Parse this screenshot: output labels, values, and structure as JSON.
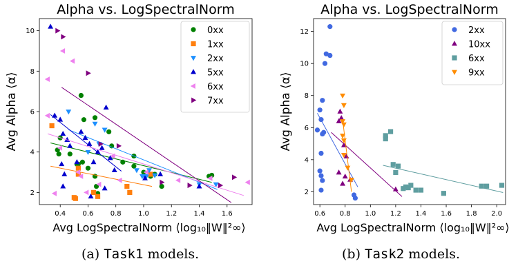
{
  "captions": [
    {
      "prefix": "(a) ",
      "code": "Task1",
      "suffix": " models."
    },
    {
      "prefix": "(b) ",
      "code": "Task2",
      "suffix": " models."
    }
  ],
  "chart_data": [
    {
      "type": "scatter",
      "title": "Alpha vs. LogSpectralNorm",
      "xlabel": "Avg LogSpectralNorm ⟨log₁₀‖W‖²∞⟩",
      "ylabel": "Avg Alpha ⟨α⟩",
      "xlim": [
        0.25,
        1.78
      ],
      "ylim": [
        1.4,
        10.6
      ],
      "xticks": [
        0.4,
        0.6,
        0.8,
        1.0,
        1.2,
        1.4,
        1.6
      ],
      "yticks": [
        2,
        4,
        6,
        8,
        10
      ],
      "grid": false,
      "legend_position": "top-right",
      "series": [
        {
          "name": "0xx",
          "color": "#008000",
          "marker": "circle",
          "points": [
            [
              0.55,
              6.8
            ],
            [
              0.57,
              5.6
            ],
            [
              0.65,
              5.7
            ],
            [
              0.75,
              5.0
            ],
            [
              0.47,
              3.9
            ],
            [
              0.38,
              4.1
            ],
            [
              0.4,
              4.7
            ],
            [
              0.39,
              3.9
            ],
            [
              0.52,
              3.4
            ],
            [
              0.53,
              3.4
            ],
            [
              0.56,
              3.5
            ],
            [
              0.6,
              3.2
            ],
            [
              0.65,
              2.8
            ],
            [
              0.66,
              2.3
            ],
            [
              0.67,
              1.95
            ],
            [
              0.77,
              4.3
            ],
            [
              0.85,
              3.5
            ],
            [
              0.93,
              3.8
            ],
            [
              0.93,
              3.3
            ],
            [
              1.0,
              3.0
            ],
            [
              1.05,
              2.8
            ],
            [
              1.08,
              2.9
            ],
            [
              1.13,
              2.3
            ],
            [
              1.47,
              2.8
            ],
            [
              1.49,
              2.85
            ]
          ],
          "fit": [
            [
              0.33,
              4.45
            ],
            [
              1.49,
              2.5
            ]
          ]
        },
        {
          "name": "1xx",
          "color": "#ff7f0e",
          "marker": "square",
          "points": [
            [
              0.34,
              5.3
            ],
            [
              0.53,
              3.2
            ],
            [
              0.53,
              2.9
            ],
            [
              0.51,
              1.7
            ],
            [
              0.5,
              1.75
            ],
            [
              0.64,
              2.0
            ],
            [
              0.67,
              1.8
            ],
            [
              0.88,
              2.3
            ],
            [
              0.9,
              2.0
            ],
            [
              1.05,
              2.9
            ]
          ],
          "fit": [
            [
              0.33,
              3.3
            ],
            [
              1.06,
              2.3
            ]
          ]
        },
        {
          "name": "2xx",
          "color": "#1e90ff",
          "marker": "triangle-down",
          "points": [
            [
              0.46,
              6.0
            ],
            [
              0.65,
              5.4
            ],
            [
              0.68,
              4.4
            ],
            [
              0.72,
              5.1
            ],
            [
              0.6,
              4.0
            ],
            [
              0.95,
              3.1
            ],
            [
              0.99,
              2.8
            ],
            [
              1.01,
              2.75
            ],
            [
              1.02,
              2.8
            ],
            [
              1.04,
              3.1
            ],
            [
              1.08,
              2.85
            ],
            [
              1.4,
              2.4
            ],
            [
              1.52,
              2.4
            ]
          ],
          "fit": [
            [
              0.46,
              5.1
            ],
            [
              1.53,
              2.15
            ]
          ]
        },
        {
          "name": "5xx",
          "color": "#0000cd",
          "marker": "triangle-up",
          "points": [
            [
              0.33,
              10.2
            ],
            [
              0.36,
              5.8
            ],
            [
              0.4,
              5.6
            ],
            [
              0.42,
              4.9
            ],
            [
              0.45,
              4.6
            ],
            [
              0.47,
              4.3
            ],
            [
              0.41,
              3.4
            ],
            [
              0.43,
              2.9
            ],
            [
              0.52,
              3.5
            ],
            [
              0.55,
              5.0
            ],
            [
              0.58,
              4.7
            ],
            [
              0.61,
              4.4
            ],
            [
              0.64,
              3.5
            ],
            [
              0.67,
              4.0
            ],
            [
              0.7,
              4.2
            ],
            [
              0.73,
              6.2
            ],
            [
              0.76,
              3.7
            ],
            [
              0.79,
              3.1
            ],
            [
              0.72,
              2.2
            ],
            [
              0.62,
              1.8
            ],
            [
              0.42,
              2.3
            ],
            [
              1.01,
              2.7
            ],
            [
              1.12,
              2.9
            ],
            [
              1.4,
              2.3
            ]
          ],
          "fit": [
            [
              0.33,
              5.85
            ],
            [
              0.84,
              3.05
            ]
          ]
        },
        {
          "name": "6xx",
          "color": "#ee82ee",
          "marker": "triangle-left",
          "points": [
            [
              0.31,
              7.6
            ],
            [
              0.42,
              9.0
            ],
            [
              0.49,
              8.5
            ],
            [
              0.31,
              5.8
            ],
            [
              0.4,
              4.2
            ],
            [
              0.53,
              3.0
            ],
            [
              0.55,
              2.8
            ],
            [
              0.36,
              1.95
            ],
            [
              0.59,
              2.0
            ],
            [
              0.68,
              2.4
            ],
            [
              0.78,
              3.8
            ],
            [
              0.83,
              2.6
            ],
            [
              1.02,
              3.0
            ],
            [
              1.25,
              2.6
            ],
            [
              1.48,
              2.7
            ],
            [
              1.75,
              2.5
            ]
          ],
          "fit": [
            [
              0.31,
              4.9
            ],
            [
              1.72,
              1.85
            ]
          ]
        },
        {
          "name": "7xx",
          "color": "#800080",
          "marker": "triangle-right",
          "points": [
            [
              0.38,
              10.0
            ],
            [
              0.42,
              9.7
            ],
            [
              0.6,
              7.9
            ],
            [
              0.69,
              4.4
            ],
            [
              0.82,
              4.3
            ],
            [
              1.13,
              2.5
            ],
            [
              1.33,
              2.35
            ],
            [
              1.55,
              2.35
            ],
            [
              1.65,
              2.75
            ]
          ],
          "fit": [
            [
              0.41,
              7.2
            ],
            [
              1.63,
              1.5
            ]
          ]
        }
      ]
    },
    {
      "type": "scatter",
      "title": "Alpha vs. LogSpectralNorm",
      "xlabel": "Avg LogSpectralNorm ⟨log₁₀‖W‖²∞⟩",
      "ylabel": "Avg Alpha ⟨α⟩",
      "xlim": [
        0.55,
        2.07
      ],
      "ylim": [
        1.2,
        12.8
      ],
      "xticks": [
        0.6,
        0.8,
        1.0,
        1.2,
        1.4,
        1.6,
        1.8,
        2.0
      ],
      "yticks": [
        2,
        4,
        6,
        8,
        10,
        12
      ],
      "grid": false,
      "legend_position": "top-right",
      "series": [
        {
          "name": "2xx",
          "color": "#4169e1",
          "marker": "circle",
          "points": [
            [
              0.68,
              12.3
            ],
            [
              0.65,
              10.6
            ],
            [
              0.68,
              10.5
            ],
            [
              0.64,
              10.0
            ],
            [
              0.62,
              7.7
            ],
            [
              0.6,
              7.1
            ],
            [
              0.61,
              6.5
            ],
            [
              0.58,
              5.85
            ],
            [
              0.63,
              5.7
            ],
            [
              0.62,
              5.6
            ],
            [
              0.61,
              4.4
            ],
            [
              0.6,
              3.3
            ],
            [
              0.61,
              3.0
            ],
            [
              0.62,
              2.7
            ],
            [
              0.61,
              2.1
            ],
            [
              0.87,
              1.8
            ],
            [
              0.88,
              1.6
            ]
          ],
          "fit": [
            [
              0.58,
              6.9
            ],
            [
              0.9,
              2.3
            ]
          ]
        },
        {
          "name": "10xx",
          "color": "#800080",
          "marker": "triangle-up",
          "points": [
            [
              0.76,
              7.0
            ],
            [
              0.77,
              6.6
            ],
            [
              0.75,
              6.4
            ],
            [
              0.79,
              4.9
            ],
            [
              0.81,
              4.2
            ],
            [
              0.75,
              3.2
            ],
            [
              0.78,
              2.5
            ],
            [
              0.8,
              2.95
            ],
            [
              0.84,
              2.75
            ],
            [
              1.2,
              2.15
            ]
          ],
          "fit": [
            [
              0.69,
              5.7
            ],
            [
              1.25,
              1.7
            ]
          ]
        },
        {
          "name": "6xx",
          "color": "#5f9ea0",
          "marker": "square",
          "points": [
            [
              1.12,
              5.5
            ],
            [
              1.12,
              5.3
            ],
            [
              1.16,
              5.75
            ],
            [
              1.18,
              3.7
            ],
            [
              1.22,
              3.6
            ],
            [
              1.2,
              3.2
            ],
            [
              1.26,
              2.2
            ],
            [
              1.28,
              2.3
            ],
            [
              1.3,
              2.25
            ],
            [
              1.32,
              2.4
            ],
            [
              1.36,
              2.1
            ],
            [
              1.4,
              2.1
            ],
            [
              1.58,
              1.9
            ],
            [
              1.88,
              2.35
            ],
            [
              1.92,
              2.35
            ],
            [
              2.04,
              2.4
            ]
          ],
          "fit": [
            [
              1.1,
              3.65
            ],
            [
              2.05,
              1.95
            ]
          ]
        },
        {
          "name": "9xx",
          "color": "#ff8c00",
          "marker": "triangle-down",
          "points": [
            [
              0.78,
              8.0
            ],
            [
              0.79,
              7.4
            ],
            [
              0.78,
              6.4
            ],
            [
              0.79,
              6.2
            ],
            [
              0.78,
              5.5
            ],
            [
              0.79,
              5.2
            ],
            [
              0.79,
              4.3
            ],
            [
              0.82,
              3.5
            ],
            [
              0.85,
              2.75
            ]
          ],
          "fit": [
            [
              0.78,
              6.5
            ],
            [
              0.85,
              2.0
            ]
          ]
        }
      ]
    }
  ]
}
